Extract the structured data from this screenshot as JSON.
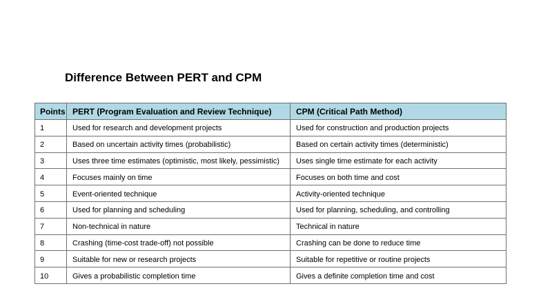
{
  "colors": {
    "header_bg": "#b0d9e5",
    "border": "#6f6f6f",
    "text": "#000000",
    "page_bg": "#ffffff"
  },
  "page": {
    "title": "Difference Between PERT and CPM"
  },
  "table": {
    "headers": {
      "points": "Points",
      "pert": "PERT (Program Evaluation and Review Technique)",
      "cpm": "CPM (Critical Path Method)"
    },
    "rows": [
      {
        "point": "1",
        "pert": "Used for research and development projects",
        "cpm": "Used for construction and production projects"
      },
      {
        "point": "2",
        "pert": "Based on uncertain activity times (probabilistic)",
        "cpm": "Based on certain activity times (deterministic)"
      },
      {
        "point": "3",
        "pert": "Uses three time estimates (optimistic, most likely, pessimistic)",
        "cpm": "Uses single time estimate for each activity"
      },
      {
        "point": "4",
        "pert": "Focuses mainly on time",
        "cpm": "Focuses on both time and cost"
      },
      {
        "point": "5",
        "pert": "Event-oriented technique",
        "cpm": "Activity-oriented technique"
      },
      {
        "point": "6",
        "pert": "Used for planning and scheduling",
        "cpm": "Used for planning, scheduling, and controlling"
      },
      {
        "point": "7",
        "pert": "Non-technical in nature",
        "cpm": "Technical in nature"
      },
      {
        "point": "8",
        "pert": "Crashing (time-cost trade-off) not possible",
        "cpm": "Crashing can be done to reduce time"
      },
      {
        "point": "9",
        "pert": "Suitable for new or research projects",
        "cpm": "Suitable for repetitive or routine projects"
      },
      {
        "point": "10",
        "pert": "Gives a probabilistic completion time",
        "cpm": "Gives a definite completion time and cost"
      }
    ]
  }
}
